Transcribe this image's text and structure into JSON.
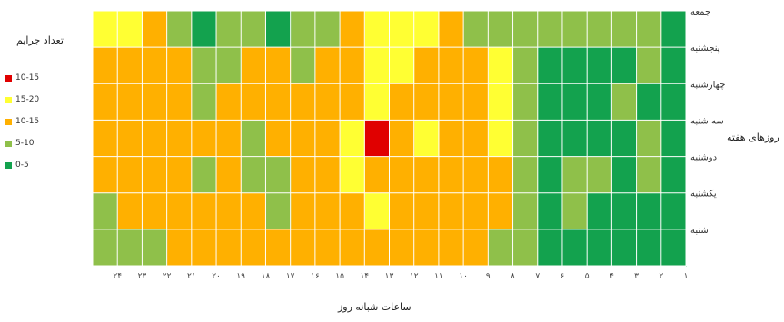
{
  "chart_data": {
    "type": "heatmap",
    "title": "",
    "xlabel": "ساعات شبانه روز",
    "ylabel": "روزهای هفته",
    "x": [
      "1",
      "2",
      "3",
      "4",
      "5",
      "6",
      "7",
      "8",
      "9",
      "10",
      "11",
      "12",
      "13",
      "14",
      "15",
      "16",
      "17",
      "18",
      "19",
      "20",
      "21",
      "22",
      "23",
      "24"
    ],
    "x_tick_labels": [
      "۱",
      "۲",
      "۳",
      "۴",
      "۵",
      "۶",
      "۷",
      "۸",
      "۹",
      "۱۰",
      "۱۱",
      "۱۲",
      "۱۳",
      "۱۴",
      "۱۵",
      "۱۶",
      "۱۷",
      "۱۸",
      "۱۹",
      "۲۰",
      "۲۱",
      "۲۲",
      "۲۳",
      "۲۴"
    ],
    "y": [
      "جمعه",
      "پنجشنبه",
      "چهارشنبه",
      "سه شنبه",
      "دوشنبه",
      "یکشنبه",
      "شنبه"
    ],
    "values": [
      [
        1,
        2,
        2,
        2,
        2,
        2,
        2,
        2,
        2,
        3,
        4,
        4,
        4,
        3,
        2,
        2,
        1,
        2,
        2,
        1,
        2,
        3,
        4,
        4
      ],
      [
        1,
        2,
        1,
        1,
        1,
        1,
        2,
        4,
        3,
        3,
        3,
        4,
        4,
        3,
        3,
        2,
        3,
        3,
        2,
        2,
        3,
        3,
        3,
        3
      ],
      [
        1,
        1,
        2,
        1,
        1,
        1,
        2,
        4,
        3,
        3,
        3,
        3,
        4,
        3,
        3,
        3,
        3,
        3,
        3,
        2,
        3,
        3,
        3,
        3
      ],
      [
        1,
        2,
        1,
        1,
        1,
        1,
        2,
        4,
        3,
        3,
        4,
        3,
        5,
        4,
        3,
        3,
        3,
        2,
        3,
        3,
        3,
        3,
        3,
        3
      ],
      [
        1,
        2,
        1,
        2,
        2,
        1,
        2,
        3,
        3,
        3,
        3,
        3,
        3,
        4,
        3,
        3,
        2,
        2,
        3,
        2,
        3,
        3,
        3,
        3
      ],
      [
        1,
        1,
        1,
        1,
        2,
        1,
        2,
        3,
        3,
        3,
        3,
        3,
        4,
        3,
        3,
        3,
        2,
        3,
        3,
        3,
        3,
        3,
        3,
        2
      ],
      [
        1,
        1,
        1,
        1,
        1,
        1,
        2,
        2,
        3,
        3,
        3,
        3,
        3,
        3,
        3,
        3,
        3,
        3,
        3,
        3,
        3,
        2,
        2,
        2
      ]
    ],
    "legend": {
      "title": "تعداد جرایم",
      "position": "left",
      "items": [
        {
          "label": "10-15",
          "color": "#e00000"
        },
        {
          "label": "15-20",
          "color": "#ffff33"
        },
        {
          "label": "10-15",
          "color": "#ffb000"
        },
        {
          "label": "5-10",
          "color": "#8fc04a"
        },
        {
          "label": "0-5",
          "color": "#13a24e"
        }
      ]
    },
    "grid": true
  }
}
